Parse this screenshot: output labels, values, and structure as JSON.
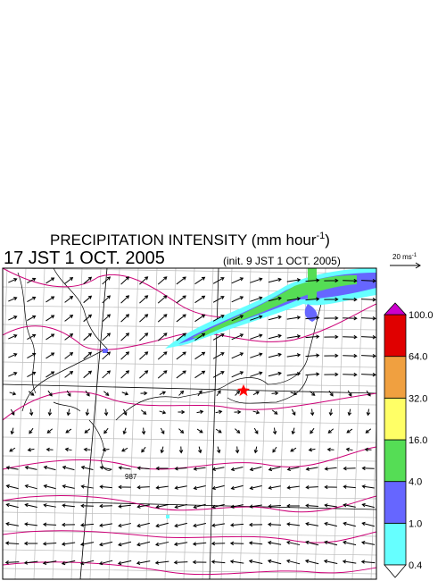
{
  "title": {
    "text": "PRECIPITATION INTENSITY (mm hour",
    "superscript": "-1",
    "close": ")"
  },
  "time": "17 JST 1 OCT. 2005",
  "init": "(init. 9 JST 1 OCT. 2005)",
  "reference_vector": {
    "text": "20 ms",
    "superscript": "-1"
  },
  "contour_label": "987",
  "legend": {
    "labels": [
      "0.4",
      "1.0",
      "4.0",
      "16.0",
      "32.0",
      "64.0",
      "100.0"
    ],
    "colors": [
      "#66ffff",
      "#6666ff",
      "#55dd55",
      "#ffff66",
      "#f0a040",
      "#e00000"
    ],
    "over": "#cc00cc",
    "under": "#ffffff"
  }
}
